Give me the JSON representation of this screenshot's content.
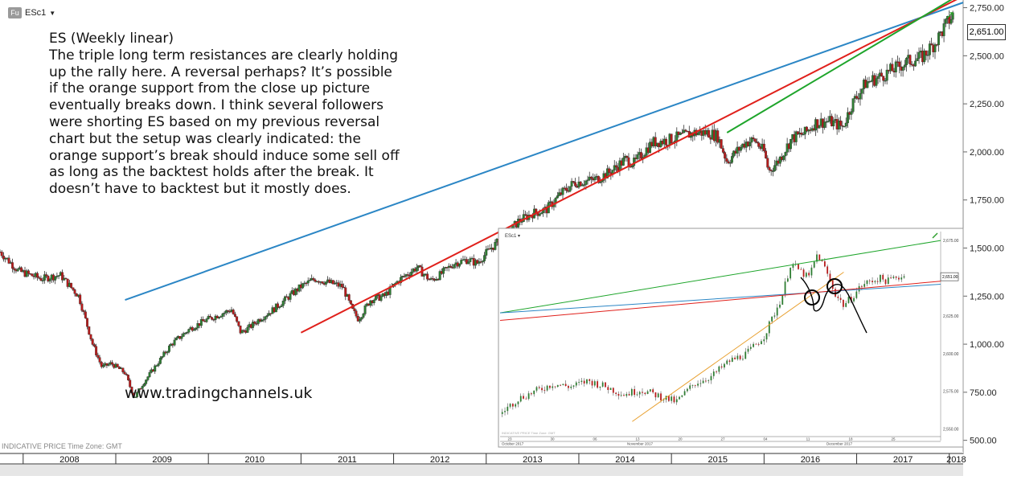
{
  "header": {
    "badge": "Fu",
    "symbol": "ESc1",
    "dropdown_icon": "chevron-down-icon"
  },
  "annotation": {
    "lines": [
      "ES (Weekly linear)",
      "The triple long term resistances are clearly holding",
      "up the rally here. A reversal perhaps? It’s possible",
      "if the orange support from the close up picture",
      "eventually breaks down. I think several followers",
      "were shorting ES based on my previous reversal",
      "chart but the setup was clearly indicated: the",
      "orange support’s break should induce some sell off",
      "as long as the backtest holds after the break. It",
      "doesn’t have to backtest but it mostly does."
    ]
  },
  "watermark": "www.tradingchannels.uk",
  "footer_note": "INDICATIVE PRICE   Time Zone: GMT",
  "price_badge": "2,651.00",
  "colors": {
    "up": "#2e7d32",
    "down": "#b71c1c",
    "blue_line": "#2b86c5",
    "red_line": "#e0201b",
    "green_line": "#1ea52b",
    "orange_line": "#e8a030"
  },
  "chart_data": [
    {
      "type": "candlestick",
      "timeframe": "Weekly",
      "y_ticks": [
        "2,750.00",
        "2,500.00",
        "2,250.00",
        "2,000.00",
        "1,750.00",
        "1,500.00",
        "1,250.00",
        "1,000.00",
        "750.00",
        "500.00"
      ],
      "y_tick_values": [
        2750,
        2500,
        2250,
        2000,
        1750,
        1500,
        1250,
        1000,
        750,
        500
      ],
      "ylim": [
        440,
        2790
      ],
      "x_labels": [
        "2008",
        "2009",
        "2010",
        "2011",
        "2012",
        "2013",
        "2014",
        "2015",
        "2016",
        "2017",
        "2018"
      ],
      "x_label_years": [
        2008,
        2009,
        2010,
        2011,
        2012,
        2013,
        2014,
        2015,
        2016,
        2017,
        2018
      ],
      "xlim": [
        2007.75,
        2018.15
      ],
      "last_price": 2651,
      "series": [
        {
          "x": [
            2007.75,
            2007.95,
            2008.2,
            2008.4,
            2008.6,
            2008.75,
            2008.85,
            2008.95,
            2009.1,
            2009.2,
            2009.3,
            2009.45,
            2009.6,
            2009.8,
            2009.95,
            2010.1,
            2010.25,
            2010.35,
            2010.45,
            2010.55,
            2010.7,
            2010.85,
            2011.0,
            2011.15,
            2011.3,
            2011.45,
            2011.55,
            2011.62,
            2011.75,
            2011.9,
            2012.05,
            2012.25,
            2012.4,
            2012.5,
            2012.65,
            2012.8,
            2012.9,
            2013.05,
            2013.2,
            2013.35,
            2013.5,
            2013.65,
            2013.8,
            2013.95,
            2014.1,
            2014.2,
            2014.35,
            2014.5,
            2014.6,
            2014.7,
            2014.8,
            2014.95,
            2015.1,
            2015.25,
            2015.4,
            2015.5,
            2015.6,
            2015.7,
            2015.8,
            2015.9,
            2016.0,
            2016.05,
            2016.15,
            2016.3,
            2016.45,
            2016.55,
            2016.7,
            2016.85,
            2016.95,
            2017.1,
            2017.25,
            2017.4,
            2017.55,
            2017.7,
            2017.85,
            2017.95,
            2018.05
          ],
          "y": [
            1480,
            1380,
            1340,
            1360,
            1250,
            1000,
            880,
            900,
            850,
            720,
            800,
            900,
            1000,
            1080,
            1120,
            1150,
            1180,
            1060,
            1090,
            1130,
            1180,
            1240,
            1300,
            1340,
            1320,
            1300,
            1180,
            1130,
            1230,
            1250,
            1330,
            1400,
            1330,
            1360,
            1420,
            1440,
            1420,
            1500,
            1560,
            1640,
            1680,
            1700,
            1780,
            1840,
            1850,
            1860,
            1900,
            1960,
            1940,
            2000,
            2050,
            2060,
            2080,
            2100,
            2100,
            2080,
            1950,
            2000,
            2050,
            2060,
            2000,
            1900,
            1950,
            2070,
            2100,
            2150,
            2160,
            2130,
            2250,
            2360,
            2390,
            2430,
            2470,
            2490,
            2570,
            2650,
            2720
          ]
        }
      ],
      "trendlines": [
        {
          "name": "blue",
          "color": "#2b86c5",
          "from": [
            2009.1,
            1230
          ],
          "to": [
            2017.7,
            2700
          ]
        },
        {
          "name": "red",
          "color": "#e0201b",
          "from": [
            2011.0,
            1060
          ],
          "to": [
            2017.7,
            2700
          ]
        },
        {
          "name": "green",
          "color": "#1ea52b",
          "from": [
            2015.6,
            2100
          ],
          "to": [
            2017.7,
            2700
          ]
        }
      ]
    },
    {
      "type": "candlestick",
      "timeframe": "close up",
      "header": "ESc1",
      "last_price": 2651,
      "last_price_label": "2,651.00",
      "y_ticks": [
        "2,675.00",
        "2,650.00",
        "2,625.00",
        "2,600.00",
        "2,575.00",
        "2,550.00"
      ],
      "y_tick_values": [
        2675,
        2650,
        2625,
        2600,
        2575,
        2550
      ],
      "ylim": [
        2545,
        2682
      ],
      "x_ticks": [
        "23",
        "30",
        "06",
        "13",
        "20",
        "27",
        "04",
        "11",
        "18",
        "25"
      ],
      "x_months": [
        "October 2017",
        "November 2017",
        "December 2017"
      ],
      "footer": "INDICATIVE PRICE   Time Zone: GMT",
      "series": [
        {
          "x": [
            0,
            4,
            8,
            12,
            16,
            20,
            24,
            28,
            32,
            36,
            40,
            44,
            48,
            52,
            56,
            60,
            64,
            66,
            68,
            70,
            72,
            74,
            76,
            78,
            80,
            82,
            84,
            86,
            88,
            90,
            92
          ],
          "y": [
            2560,
            2570,
            2575,
            2580,
            2578,
            2582,
            2578,
            2573,
            2576,
            2572,
            2568,
            2580,
            2585,
            2595,
            2600,
            2612,
            2638,
            2660,
            2655,
            2650,
            2666,
            2655,
            2640,
            2632,
            2638,
            2645,
            2648,
            2650,
            2648,
            2651,
            2651
          ]
        }
      ],
      "trendlines": [
        {
          "name": "green",
          "color": "#1ea52b",
          "from": [
            0,
            2627
          ],
          "to": [
            100,
            2675
          ]
        },
        {
          "name": "blue",
          "color": "#2b86c5",
          "from": [
            0,
            2627
          ],
          "to": [
            100,
            2646
          ]
        },
        {
          "name": "red",
          "color": "#e0201b",
          "from": [
            0,
            2622
          ],
          "to": [
            100,
            2648
          ]
        },
        {
          "name": "orange",
          "color": "#e8a030",
          "from": [
            30,
            2555
          ],
          "to": [
            78,
            2654
          ]
        }
      ]
    }
  ]
}
